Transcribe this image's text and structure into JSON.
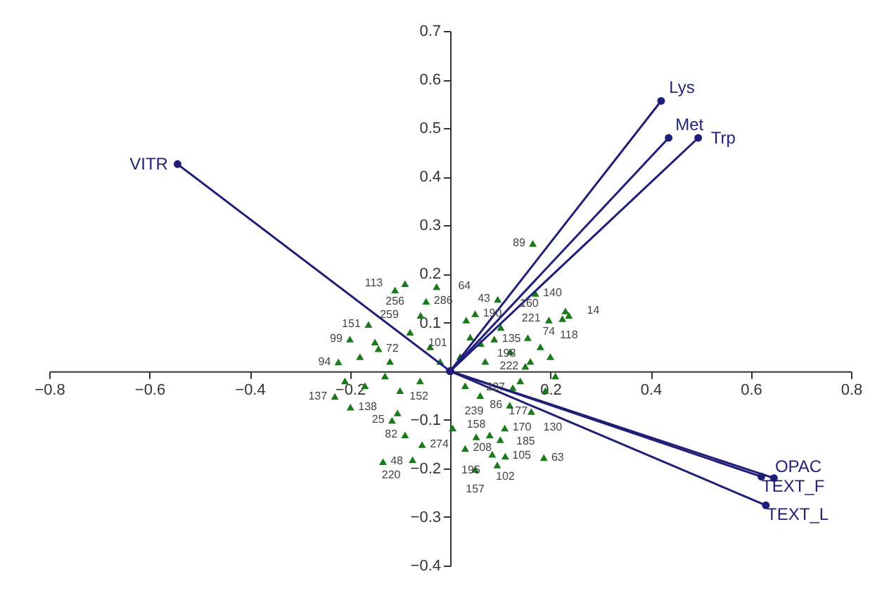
{
  "chart_data": {
    "type": "scatter",
    "xlim": [
      -0.8,
      0.8
    ],
    "ylim": [
      -0.4,
      0.7
    ],
    "xticks": [
      -0.8,
      -0.6,
      -0.4,
      -0.2,
      0.2,
      0.4,
      0.6,
      0.8
    ],
    "yticks": [
      -0.4,
      -0.3,
      -0.2,
      -0.1,
      0.1,
      0.2,
      0.3,
      0.4,
      0.5,
      0.6,
      0.7
    ],
    "grid": false,
    "series": [
      {
        "color": "#1a7a1a",
        "marker": "triangle",
        "x": [
          -0.09,
          -0.11,
          -0.027,
          -0.048,
          -0.059,
          -0.2,
          -0.163,
          -0.223,
          -0.143,
          0.165,
          0.17,
          0.23,
          0.237,
          0.224,
          0.197,
          0.095,
          0.05,
          0.032,
          0.101,
          0.088,
          0.155,
          0.061,
          -0.199,
          -0.105,
          -0.116,
          -0.09,
          -0.056,
          -0.075,
          -0.134,
          -0.23,
          0.005,
          0.109,
          0.1,
          0.052,
          0.03,
          0.11,
          0.084,
          0.05,
          0.094,
          0.187,
          0.119,
          0.162,
          0.079,
          0.125,
          -0.18,
          -0.15,
          -0.12,
          -0.08,
          -0.04,
          -0.02,
          0.02,
          0.04,
          0.07,
          0.12,
          0.15,
          0.18,
          0.2,
          -0.17,
          -0.1,
          -0.06,
          0.03,
          0.14,
          0.19,
          -0.21,
          -0.13,
          0.06,
          0.16,
          0.21
        ],
        "values": [
          0.18,
          0.167,
          0.174,
          0.144,
          0.115,
          0.066,
          0.096,
          0.019,
          0.046,
          0.263,
          0.16,
          0.124,
          0.115,
          0.108,
          0.105,
          0.148,
          0.118,
          0.105,
          0.09,
          0.066,
          0.069,
          0.057,
          -0.074,
          -0.086,
          -0.101,
          -0.131,
          -0.151,
          -0.182,
          -0.186,
          -0.052,
          -0.117,
          -0.117,
          -0.141,
          -0.135,
          -0.159,
          -0.175,
          -0.171,
          -0.202,
          -0.193,
          -0.178,
          -0.07,
          -0.083,
          -0.131,
          -0.034,
          0.03,
          0.06,
          0.02,
          0.08,
          0.05,
          0.02,
          0.03,
          0.07,
          0.02,
          0.04,
          0.01,
          0.05,
          0.03,
          -0.03,
          -0.04,
          -0.02,
          -0.03,
          -0.02,
          -0.04,
          -0.02,
          -0.01,
          -0.05,
          0.02,
          -0.01
        ]
      },
      {
        "type": "line",
        "name": "VITR",
        "color": "#1f1f7a",
        "marker": "circle",
        "x": [
          0,
          -0.544
        ],
        "values": [
          0,
          0.426
        ]
      },
      {
        "type": "line",
        "name": "Lys",
        "color": "#1f1f7a",
        "marker": "circle",
        "x": [
          0,
          0.421
        ],
        "values": [
          0,
          0.556
        ]
      },
      {
        "type": "line",
        "name": "Met",
        "color": "#1f1f7a",
        "marker": "circle",
        "x": [
          0,
          0.436
        ],
        "values": [
          0,
          0.48
        ]
      },
      {
        "type": "line",
        "name": "Trp",
        "color": "#1f1f7a",
        "marker": "circle",
        "x": [
          0,
          0.495
        ],
        "values": [
          0,
          0.48
        ]
      },
      {
        "type": "line",
        "name": "OPAC",
        "color": "#1f1f7a",
        "marker": "circle",
        "x": [
          0,
          0.646
        ],
        "values": [
          0,
          -0.22
        ]
      },
      {
        "type": "line",
        "name": "TEXT_F",
        "color": "#1f1f7a",
        "marker": "circle",
        "x": [
          0,
          0.621
        ],
        "values": [
          0,
          -0.217
        ]
      },
      {
        "type": "line",
        "name": "TEXT_L",
        "color": "#1f1f7a",
        "marker": "circle",
        "x": [
          0,
          0.63
        ],
        "values": [
          0,
          -0.276
        ]
      }
    ],
    "annotations": [
      {
        "text": "113",
        "x": -0.09,
        "y": 0.18
      },
      {
        "text": "256",
        "x": -0.11,
        "y": 0.167
      },
      {
        "text": "64",
        "x": -0.027,
        "y": 0.174
      },
      {
        "text": "286",
        "x": -0.048,
        "y": 0.144
      },
      {
        "text": "259",
        "x": -0.059,
        "y": 0.115
      },
      {
        "text": "99",
        "x": -0.2,
        "y": 0.066
      },
      {
        "text": "151",
        "x": -0.163,
        "y": 0.096
      },
      {
        "text": "94",
        "x": -0.223,
        "y": 0.019
      },
      {
        "text": "72",
        "x": -0.143,
        "y": 0.046
      },
      {
        "text": "89",
        "x": 0.165,
        "y": 0.263
      },
      {
        "text": "140",
        "x": 0.17,
        "y": 0.16
      },
      {
        "text": "14",
        "x": 0.23,
        "y": 0.124
      },
      {
        "text": "118",
        "x": 0.237,
        "y": 0.115
      },
      {
        "text": "221",
        "x": 0.224,
        "y": 0.108
      },
      {
        "text": "74",
        "x": 0.197,
        "y": 0.105
      },
      {
        "text": "43",
        "x": 0.095,
        "y": 0.148
      },
      {
        "text": "190",
        "x": 0.05,
        "y": 0.118
      },
      {
        "text": "101",
        "x": 0.032,
        "y": 0.105
      },
      {
        "text": "160",
        "x": 0.101,
        "y": 0.09
      },
      {
        "text": "135",
        "x": 0.088,
        "y": 0.066
      },
      {
        "text": "198",
        "x": 0.155,
        "y": 0.069
      },
      {
        "text": "222",
        "x": 0.061,
        "y": 0.057
      },
      {
        "text": "138",
        "x": -0.199,
        "y": -0.074
      },
      {
        "text": "152",
        "x": -0.105,
        "y": -0.086
      },
      {
        "text": "25",
        "x": -0.116,
        "y": -0.101
      },
      {
        "text": "82",
        "x": -0.09,
        "y": -0.131
      },
      {
        "text": "274",
        "x": -0.056,
        "y": -0.151
      },
      {
        "text": "220",
        "x": -0.075,
        "y": -0.182
      },
      {
        "text": "48",
        "x": -0.134,
        "y": -0.186
      },
      {
        "text": "137",
        "x": -0.23,
        "y": -0.052
      },
      {
        "text": "239",
        "x": 0.005,
        "y": -0.117
      },
      {
        "text": "170",
        "x": 0.109,
        "y": -0.117
      },
      {
        "text": "105",
        "x": 0.1,
        "y": -0.141
      },
      {
        "text": "158",
        "x": 0.052,
        "y": -0.135
      },
      {
        "text": "208",
        "x": 0.03,
        "y": -0.159
      },
      {
        "text": "102",
        "x": 0.11,
        "y": -0.175
      },
      {
        "text": "195",
        "x": 0.084,
        "y": -0.171
      },
      {
        "text": "157",
        "x": 0.05,
        "y": -0.202
      },
      {
        "text": "185",
        "x": 0.094,
        "y": -0.193
      },
      {
        "text": "63",
        "x": 0.187,
        "y": -0.178
      },
      {
        "text": "86",
        "x": 0.119,
        "y": -0.07
      },
      {
        "text": "130",
        "x": 0.162,
        "y": -0.083
      },
      {
        "text": "177",
        "x": 0.079,
        "y": -0.131
      },
      {
        "text": "227",
        "x": 0.125,
        "y": -0.034
      }
    ]
  }
}
